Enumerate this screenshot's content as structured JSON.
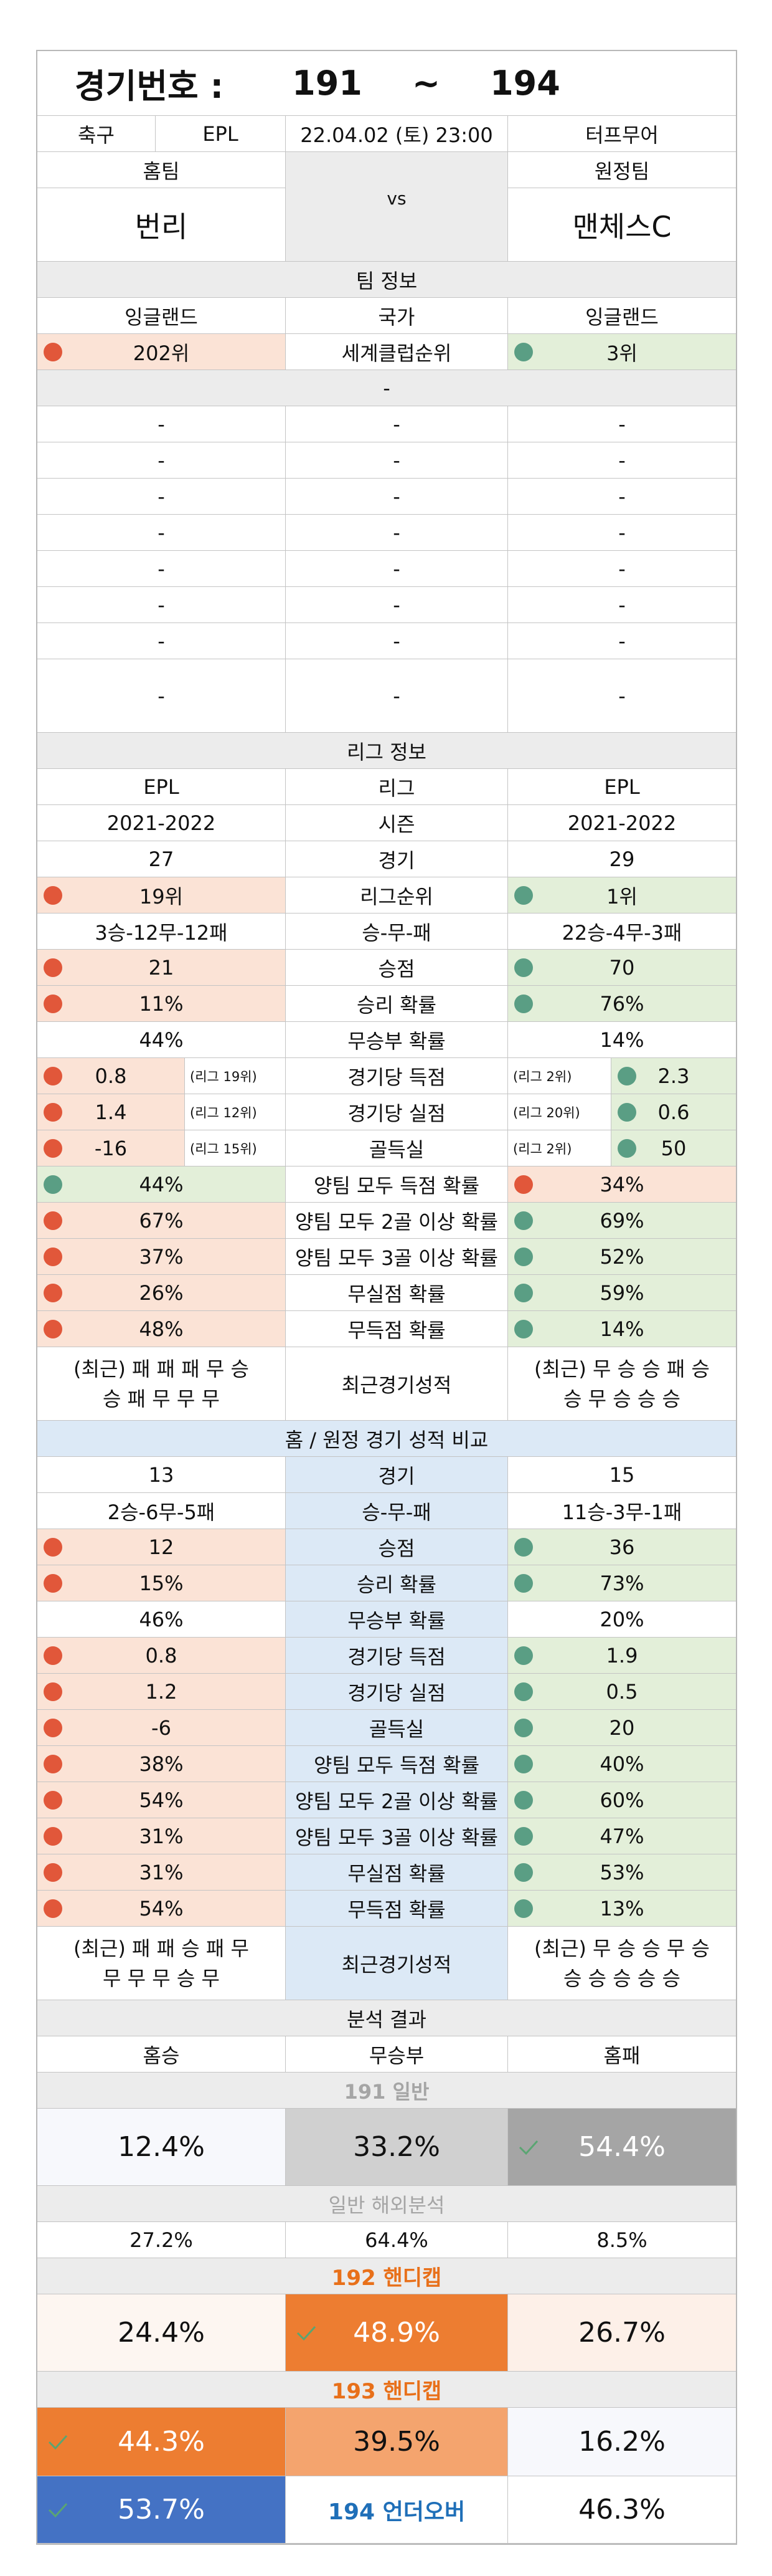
{
  "header": {
    "label": "경기번호 :",
    "start": "191",
    "tilde": "~",
    "end": "194"
  },
  "match": {
    "sport": "축구",
    "league": "EPL",
    "datetime": "22.04.02 (토) 23:00",
    "venue": "터프무어",
    "home_label": "홈팀",
    "away_label": "원정팀",
    "home": "번리",
    "away": "맨체스C",
    "vs": "vs"
  },
  "team_info": {
    "title": "팀 정보",
    "country": {
      "home": "잉글랜드",
      "label": "국가",
      "away": "잉글랜드"
    },
    "club_rank": {
      "home": "202위",
      "label": "세계클럽순위",
      "away": "3위"
    },
    "dash": "-"
  },
  "league_info": {
    "title": "리그 정보",
    "league": {
      "home": "EPL",
      "label": "리그",
      "away": "EPL"
    },
    "season": {
      "home": "2021-2022",
      "label": "시즌",
      "away": "2021-2022"
    },
    "games": {
      "home": "27",
      "label": "경기",
      "away": "29"
    },
    "rank": {
      "home": "19위",
      "label": "리그순위",
      "away": "1위"
    },
    "record": {
      "home": "3승-12무-12패",
      "label": "승-무-패",
      "away": "22승-4무-3패"
    },
    "points": {
      "home": "21",
      "label": "승점",
      "away": "70"
    },
    "win_rate": {
      "home": "11%",
      "label": "승리 확률",
      "away": "76%"
    },
    "draw_rate": {
      "home": "44%",
      "label": "무승부 확률",
      "away": "14%"
    },
    "gf": {
      "home": "0.8",
      "home_sub": "(리그 19위)",
      "label": "경기당 득점",
      "away_sub": "(리그 2위)",
      "away": "2.3"
    },
    "ga": {
      "home": "1.4",
      "home_sub": "(리그 12위)",
      "label": "경기당 실점",
      "away_sub": "(리그 20위)",
      "away": "0.6"
    },
    "gd": {
      "home": "-16",
      "home_sub": "(리그 15위)",
      "label": "골득실",
      "away_sub": "(리그 2위)",
      "away": "50"
    },
    "btts": {
      "home": "44%",
      "label": "양팀 모두 득점 확률",
      "away": "34%"
    },
    "btts2": {
      "home": "67%",
      "label": "양팀 모두 2골 이상 확률",
      "away": "69%"
    },
    "btts3": {
      "home": "37%",
      "label": "양팀 모두 3골 이상 확률",
      "away": "52%"
    },
    "clean": {
      "home": "26%",
      "label": "무실점 확률",
      "away": "59%"
    },
    "fts": {
      "home": "48%",
      "label": "무득점 확률",
      "away": "14%"
    },
    "recent": {
      "home_1": "(최근) 패 패 패 무 승",
      "home_2": "승 패 무 무 무",
      "label": "최근경기성적",
      "away_1": "(최근) 무 승 승 패 승",
      "away_2": "승 무 승 승 승"
    }
  },
  "venue_info": {
    "title": "홈 / 원정 경기 성적 비교",
    "games": {
      "home": "13",
      "label": "경기",
      "away": "15"
    },
    "record": {
      "home": "2승-6무-5패",
      "label": "승-무-패",
      "away": "11승-3무-1패"
    },
    "points": {
      "home": "12",
      "label": "승점",
      "away": "36"
    },
    "win_rate": {
      "home": "15%",
      "label": "승리 확률",
      "away": "73%"
    },
    "draw_rate": {
      "home": "46%",
      "label": "무승부 확률",
      "away": "20%"
    },
    "gf": {
      "home": "0.8",
      "label": "경기당 득점",
      "away": "1.9"
    },
    "ga": {
      "home": "1.2",
      "label": "경기당 실점",
      "away": "0.5"
    },
    "gd": {
      "home": "-6",
      "label": "골득실",
      "away": "20"
    },
    "btts": {
      "home": "38%",
      "label": "양팀 모두 득점 확률",
      "away": "40%"
    },
    "btts2": {
      "home": "54%",
      "label": "양팀 모두 2골 이상 확률",
      "away": "60%"
    },
    "btts3": {
      "home": "31%",
      "label": "양팀 모두 3골 이상 확률",
      "away": "47%"
    },
    "clean": {
      "home": "31%",
      "label": "무실점 확률",
      "away": "53%"
    },
    "fts": {
      "home": "54%",
      "label": "무득점 확률",
      "away": "13%"
    },
    "recent": {
      "home_1": "(최근) 패 패 승 패 무",
      "home_2": "무 무 무 승 무",
      "label": "최근경기성적",
      "away_1": "(최근) 무 승 승 무 승",
      "away_2": "승 승 승 승 승"
    }
  },
  "analysis": {
    "title": "분석 결과",
    "cols": {
      "home": "홈승",
      "draw": "무승부",
      "away": "홈패"
    },
    "general": {
      "title": "191 일반",
      "home": "12.4%",
      "draw": "33.2%",
      "away": "54.4%"
    },
    "overseas": {
      "title": "일반 해외분석",
      "home": "27.2%",
      "draw": "64.4%",
      "away": "8.5%"
    },
    "handicap192": {
      "title": "192 핸디캡",
      "home": "24.4%",
      "draw": "48.9%",
      "away": "26.7%"
    },
    "handicap193": {
      "title": "193 핸디캡",
      "home": "44.3%",
      "draw": "39.5%",
      "away": "16.2%"
    },
    "underover194": {
      "under": "53.7%",
      "label": "194 언더오버",
      "over": "46.3%"
    }
  },
  "colors": {
    "pink": "#fbe3d6",
    "green": "#e3efd9",
    "grey": "#ececec",
    "blue": "#dce9f6",
    "red_dot": "#e1573a",
    "green_dot": "#5a9e84",
    "orange": "#ed7d31",
    "light_orange": "#f4a46e",
    "dark_grey": "#a5a5a5",
    "royal_blue": "#4472c4",
    "title_orange": "#e8701a",
    "label_blue": "#1f6fb8"
  }
}
